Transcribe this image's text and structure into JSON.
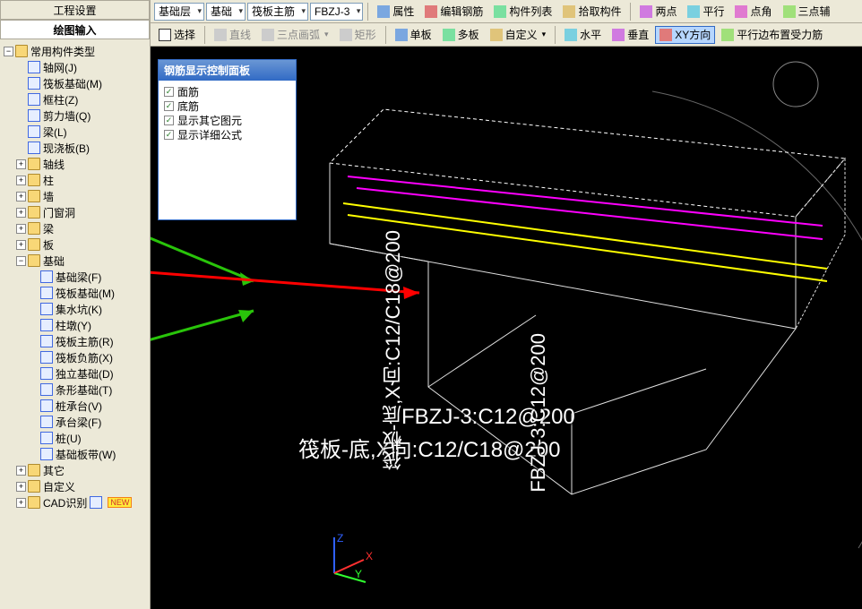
{
  "left_tabs": {
    "t1": "工程设置",
    "t2": "绘图输入"
  },
  "tree": {
    "root": "常用构件类型",
    "common": [
      "轴网(J)",
      "筏板基础(M)",
      "框柱(Z)",
      "剪力墙(Q)",
      "梁(L)",
      "现浇板(B)"
    ],
    "mid": [
      "轴线",
      "柱",
      "墙",
      "门窗洞",
      "梁",
      "板"
    ],
    "jichu_label": "基础",
    "jichu": [
      "基础梁(F)",
      "筏板基础(M)",
      "集水坑(K)",
      "柱墩(Y)",
      "筏板主筋(R)",
      "筏板负筋(X)",
      "独立基础(D)",
      "条形基础(T)",
      "桩承台(V)",
      "承台梁(F)",
      "桩(U)",
      "基础板带(W)"
    ],
    "bottom": [
      "其它",
      "自定义"
    ],
    "cad": "CAD识别",
    "new_badge": "NEW"
  },
  "toolbar1": {
    "dd1": "基础层",
    "dd2": "基础",
    "dd3": "筏板主筋",
    "dd4": "FBZJ-3",
    "b_attr": "属性",
    "b_edit": "编辑钢筋",
    "b_list": "构件列表",
    "b_pick": "拾取构件",
    "b_2pt": "两点",
    "b_para": "平行",
    "b_corner": "点角",
    "b_3aux": "三点辅"
  },
  "toolbar2": {
    "b_sel": "选择",
    "b_line": "直线",
    "b_arc": "三点画弧",
    "b_rect": "矩形",
    "b_single": "单板",
    "b_multi": "多板",
    "b_custom": "自定义",
    "b_horiz": "水平",
    "b_vert": "垂直",
    "b_xy": "XY方向",
    "b_edge": "平行边布置受力筋"
  },
  "control_panel": {
    "title": "钢筋显示控制面板",
    "c1": "面筋",
    "c2": "底筋",
    "c3": "显示其它图元",
    "c4": "显示详细公式"
  },
  "viewport": {
    "label1": "FBZJ-3:C12@200",
    "label2": "筏板-底,X向:C12/C18@200",
    "label3_vert": "筏板-底,X向:C12/C18@200",
    "label4_vert": "FBZJ-3:C12@200",
    "axis_x": "X",
    "axis_y": "Y",
    "axis_z": "Z"
  },
  "colors": {
    "bg_viewport": "#000000",
    "panel_bg": "#ece9d8",
    "arrow_green": "#29c40a",
    "arrow_red": "#ff0000",
    "line_magenta": "#ff00ff",
    "line_yellow": "#ffff00",
    "axis_x": "#ff3030",
    "axis_y": "#30ff30",
    "axis_z": "#3060ff"
  }
}
